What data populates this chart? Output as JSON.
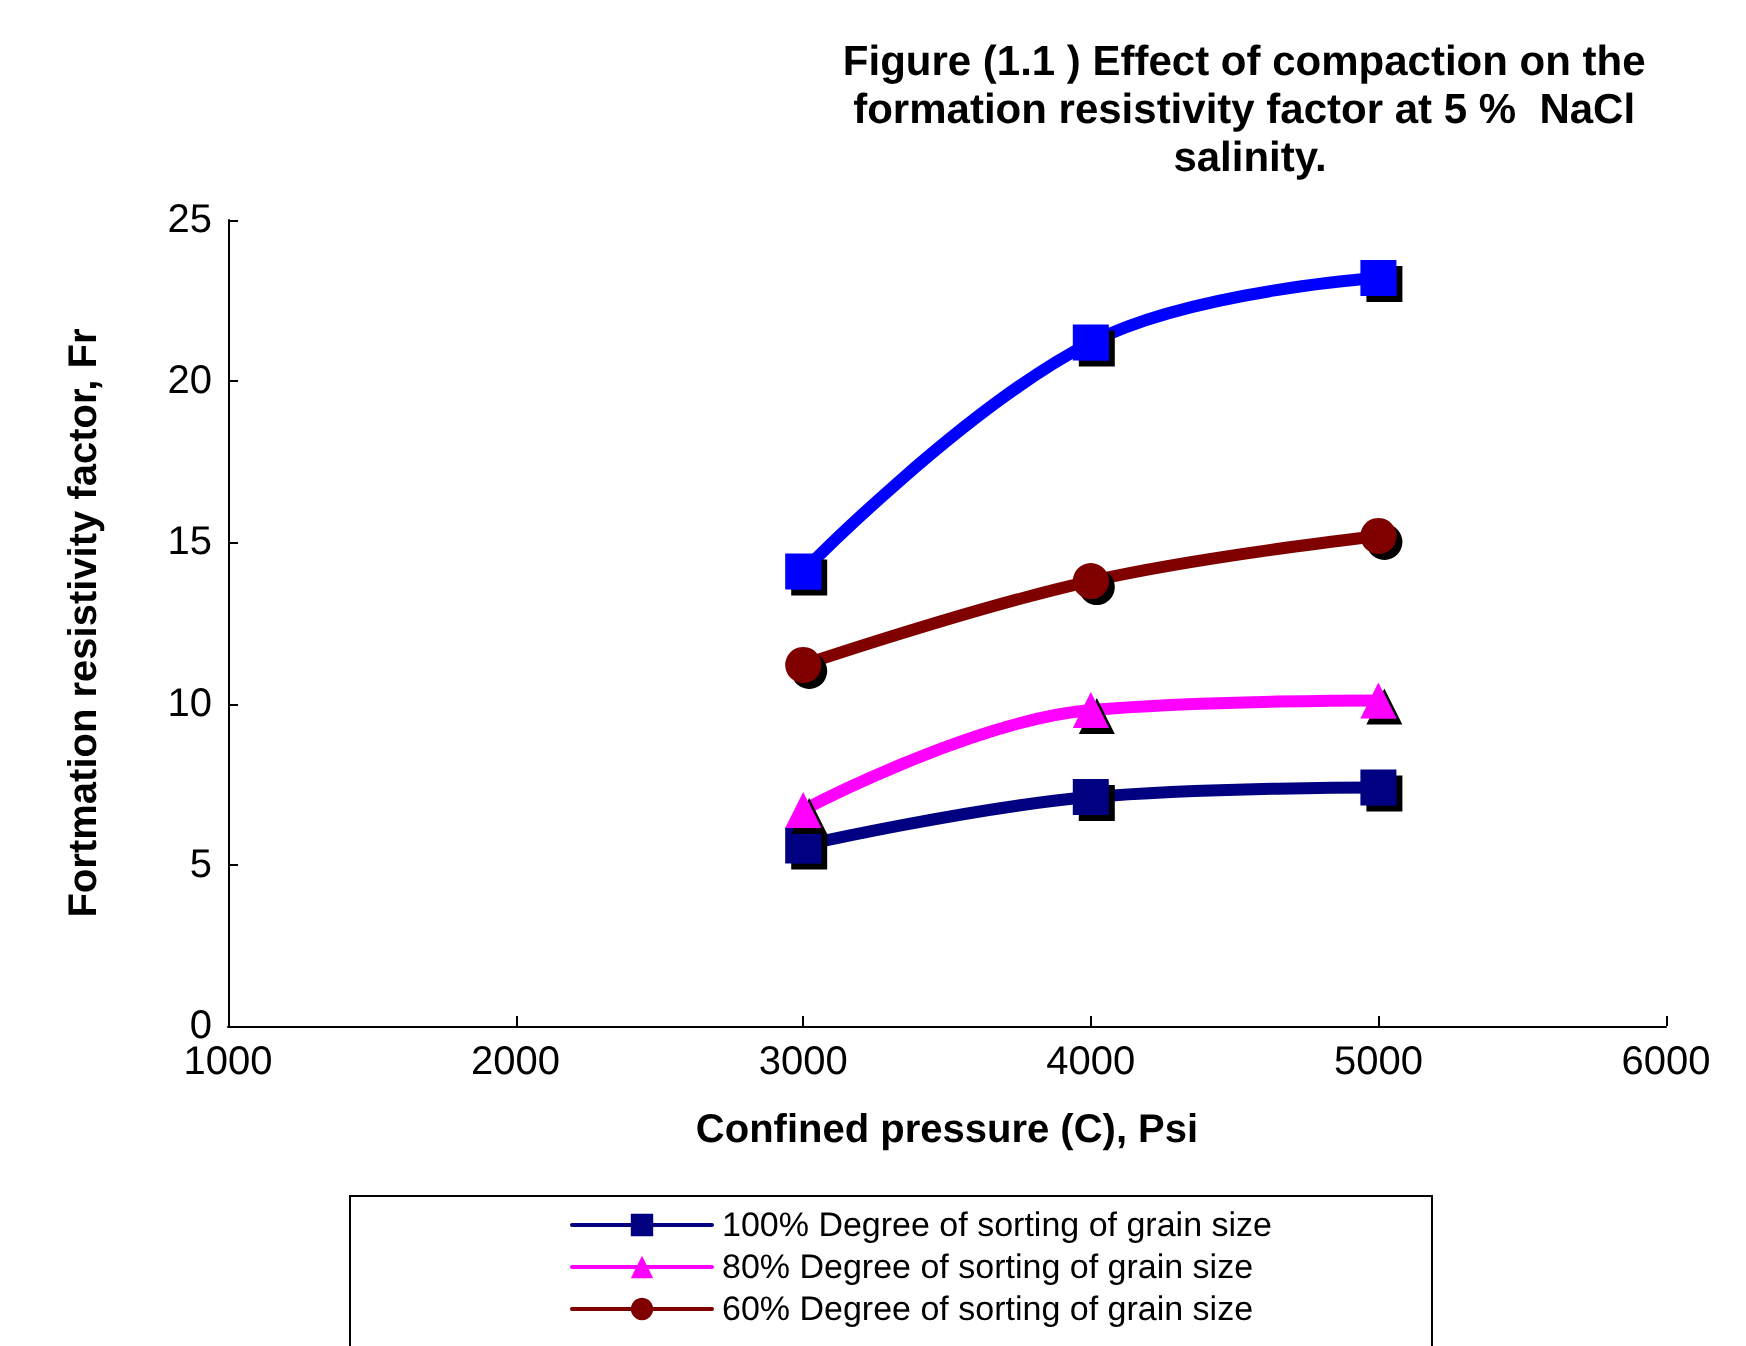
{
  "chart_data": {
    "type": "line",
    "title": "Figure (1.1 ) Effect of compaction on the formation resistivity factor at 5 %  NaCl salinity.",
    "xlabel": "Confined pressure (C), Psi",
    "ylabel": "Fortmation resistivity factor, Fr",
    "x": [
      3000,
      4000,
      5000
    ],
    "series": [
      {
        "name": "100% Degree of sorting of grain size",
        "color": "#000080",
        "marker": "square",
        "values": [
          5.6,
          7.1,
          7.4
        ]
      },
      {
        "name": "80% Degree of sorting of grain size",
        "color": "#ff00ff",
        "marker": "triangle",
        "values": [
          6.7,
          9.8,
          10.1
        ]
      },
      {
        "name": "60% Degree of sorting of grain size",
        "color": "#800000",
        "marker": "circle",
        "values": [
          11.2,
          13.8,
          15.2
        ]
      },
      {
        "color": "#0000ff",
        "marker": "square",
        "values": [
          14.1,
          21.2,
          23.2
        ]
      }
    ],
    "xlim": [
      1000,
      6000
    ],
    "xticks": [
      1000,
      2000,
      3000,
      4000,
      5000,
      6000
    ],
    "ylim": [
      0,
      25
    ],
    "yticks": [
      0,
      5,
      10,
      15,
      20,
      25
    ],
    "grid": false,
    "legend": "bottom"
  }
}
